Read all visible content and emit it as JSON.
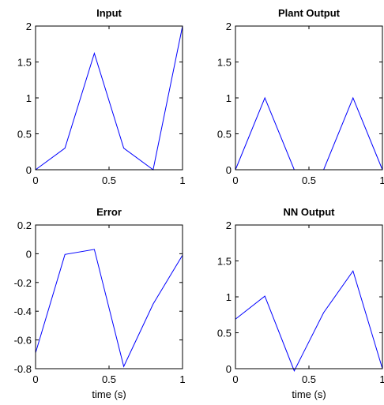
{
  "figure": {
    "line_color": "#0000ff"
  },
  "chart_data": [
    {
      "type": "line",
      "title": "Input",
      "xlabel": "",
      "ylabel": "",
      "x": [
        0,
        0.2,
        0.4,
        0.6,
        0.8,
        1
      ],
      "series": [
        {
          "values": [
            0,
            0.3,
            1.62,
            0.3,
            0,
            2
          ]
        }
      ],
      "xlim": [
        0,
        1
      ],
      "ylim": [
        0,
        2
      ],
      "xticks": [
        "0",
        "0.5",
        "1"
      ],
      "yticks": [
        "0",
        "0.5",
        "1",
        "1.5",
        "2"
      ],
      "grid": false
    },
    {
      "type": "line",
      "title": "Plant Output",
      "xlabel": "",
      "ylabel": "",
      "x": [
        0,
        0.2,
        0.4,
        0.6,
        0.8,
        1
      ],
      "series": [
        {
          "values": [
            0,
            1,
            0,
            0,
            1,
            0
          ]
        }
      ],
      "xlim": [
        0,
        1
      ],
      "ylim": [
        0,
        2
      ],
      "xticks": [
        "0",
        "0.5",
        "1"
      ],
      "yticks": [
        "0",
        "0.5",
        "1",
        "1.5",
        "2"
      ],
      "grid": false
    },
    {
      "type": "line",
      "title": "Error",
      "xlabel": "time (s)",
      "ylabel": "",
      "x": [
        0,
        0.2,
        0.4,
        0.6,
        0.8,
        1
      ],
      "series": [
        {
          "values": [
            -0.69,
            -0.005,
            0.03,
            -0.785,
            -0.35,
            -0.01
          ]
        }
      ],
      "xlim": [
        0,
        1
      ],
      "ylim": [
        -0.8,
        0.2
      ],
      "xticks": [
        "0",
        "0.5",
        "1"
      ],
      "yticks": [
        "-0.8",
        "-0.6",
        "-0.4",
        "-0.2",
        "0",
        "0.2"
      ],
      "grid": false
    },
    {
      "type": "line",
      "title": "NN Output",
      "xlabel": "time (s)",
      "ylabel": "",
      "x": [
        0,
        0.2,
        0.4,
        0.6,
        0.8,
        1
      ],
      "series": [
        {
          "values": [
            0.69,
            1.01,
            -0.03,
            0.78,
            1.36,
            0
          ]
        }
      ],
      "xlim": [
        0,
        1
      ],
      "ylim": [
        0,
        2
      ],
      "xticks": [
        "0",
        "0.5",
        "1"
      ],
      "yticks": [
        "0",
        "0.5",
        "1",
        "1.5",
        "2"
      ],
      "grid": false
    }
  ]
}
